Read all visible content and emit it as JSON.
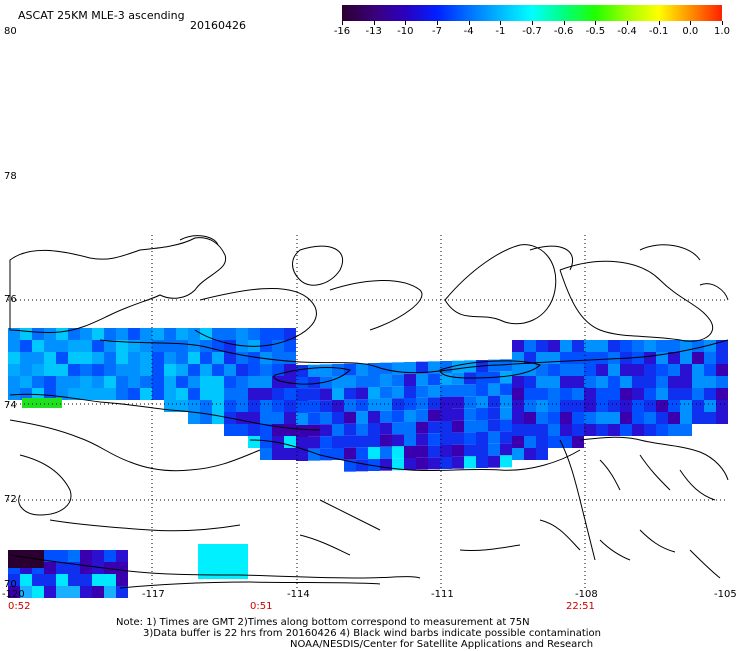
{
  "header": {
    "title": "ASCAT 25KM MLE-3 ascending",
    "date": "20160426"
  },
  "colorbar": {
    "labels": [
      "-16",
      "-13",
      "-10",
      "-7",
      "-4",
      "-1",
      "-0.7",
      "-0.6",
      "-0.5",
      "-0.4",
      "-0.1",
      "0.0",
      "1.0"
    ],
    "colors": [
      "#2a0030",
      "#3a0078",
      "#2a00c0",
      "#0020ff",
      "#0070ff",
      "#00b8ff",
      "#00ffff",
      "#00ff80",
      "#20ff00",
      "#a0ff00",
      "#ffff00",
      "#ff9000",
      "#ff2000"
    ]
  },
  "axes": {
    "lat_labels": [
      "80",
      "78",
      "76",
      "74",
      "72",
      "70"
    ],
    "lon_labels": [
      "-120",
      "-117",
      "-114",
      "-111",
      "-108",
      "-105"
    ],
    "time_labels": [
      "0:52",
      "0:51",
      "22:51"
    ]
  },
  "notes": {
    "line1": "Note: 1) Times are GMT 2)Times along bottom correspond to measurement at 75N",
    "line2": "3)Data buffer is 22 hrs from 20160426 4) Black wind barbs indicate possible contamination",
    "line3": "NOAA/NESDIS/Center for Satellite Applications and Research"
  },
  "colors": {
    "land_outline": "#000000",
    "grid": "#000000",
    "time_label": "#cc0000"
  }
}
